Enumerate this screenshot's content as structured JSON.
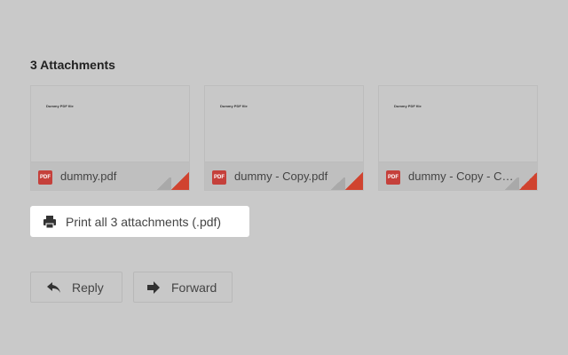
{
  "attachments_title": "3 Attachments",
  "attachments": [
    {
      "name": "dummy.pdf",
      "preview_text": "Dummy PDF file",
      "type": "PDF"
    },
    {
      "name": "dummy - Copy.pdf",
      "preview_text": "Dummy PDF file",
      "type": "PDF"
    },
    {
      "name": "dummy - Copy - Copy.pdf",
      "preview_text": "Dummy PDF file",
      "type": "PDF"
    }
  ],
  "print_label": "Print all 3 attachments (.pdf)",
  "actions": {
    "reply": "Reply",
    "forward": "Forward"
  },
  "colors": {
    "pdf_badge": "#c5403b",
    "background": "#c9c9c9"
  }
}
